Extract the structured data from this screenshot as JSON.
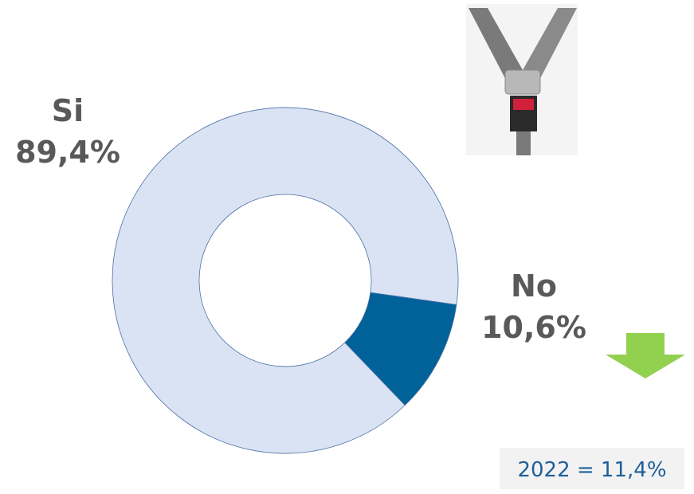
{
  "chart_data": {
    "type": "donut",
    "categories": [
      "Si",
      "No"
    ],
    "values": [
      89.4,
      10.6
    ],
    "value_labels": [
      "89,4%",
      "10,6%"
    ],
    "colors": [
      "#dae3f3",
      "#006299"
    ],
    "annotation": "2022 = 11,4%"
  }
}
